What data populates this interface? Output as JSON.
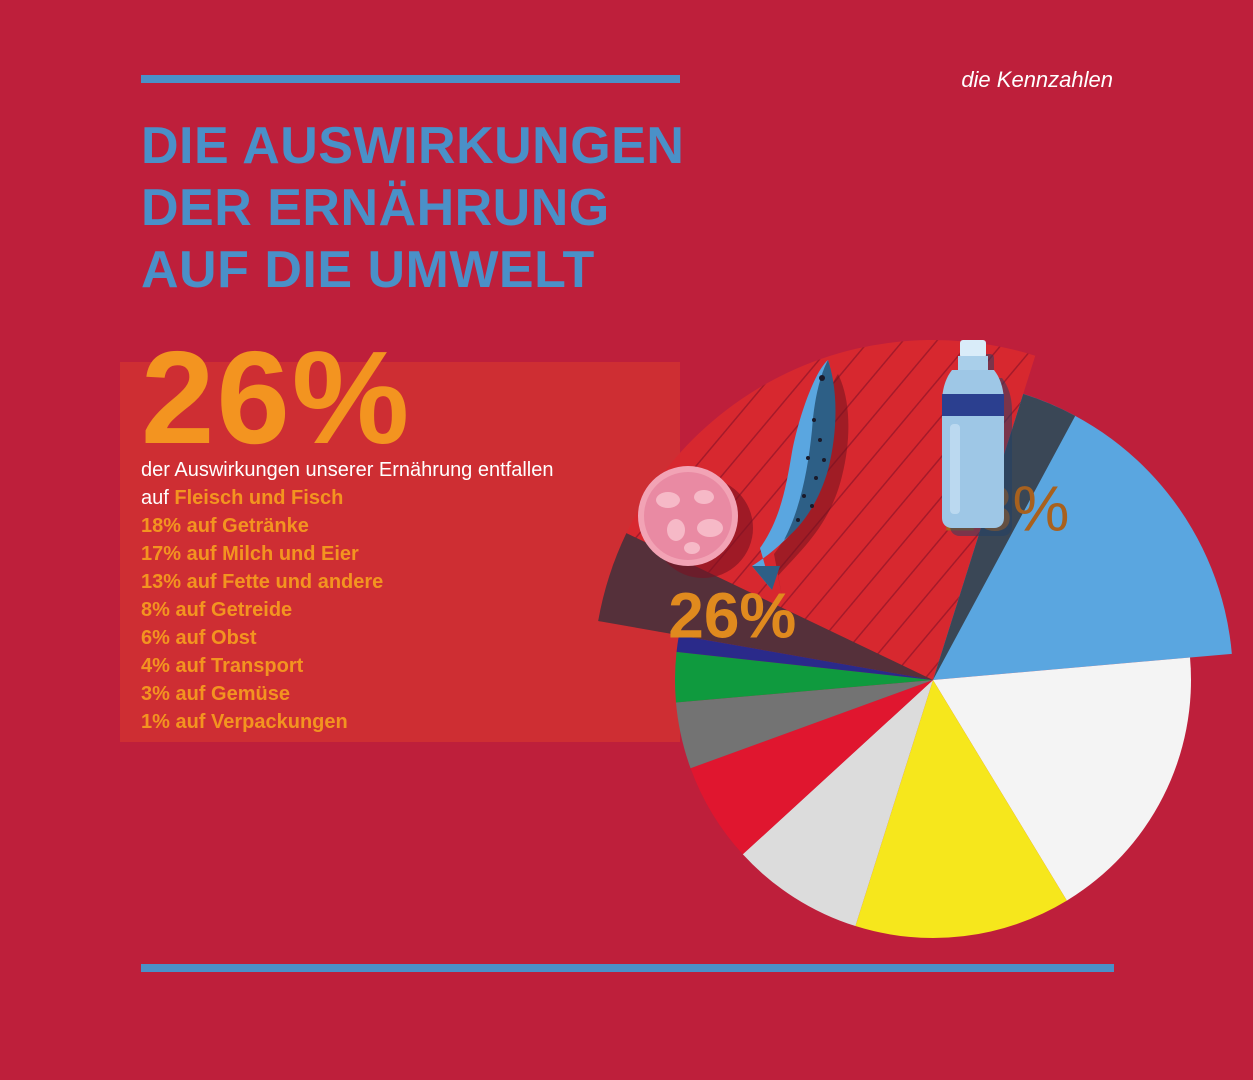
{
  "kicker": "die Kennzahlen",
  "title_lines": [
    "DIE AUSWIRKUNGEN",
    "DER ERNÄHRUNG",
    "AUF DIE UMWELT"
  ],
  "highlight": {
    "big_value": "26%",
    "lead_text": "der Auswirkungen unserer Ernährung entfallen",
    "lead_prefix": "auf",
    "lead_accent": "Fleisch und Fisch"
  },
  "breakdown": [
    "18% auf Getränke",
    "17% auf Milch und Eier",
    "13% auf Fette und andere",
    "8% auf Getreide",
    "6% auf Obst",
    "4% auf Transport",
    "3% auf Gemüse",
    "1% auf Verpackungen"
  ],
  "colors": {
    "background": "#be1f3b",
    "accent_blue": "#4a90c8",
    "accent_orange": "#f39420",
    "highlight_box": "#ce2e33"
  },
  "icons": [
    "meat-slice-icon",
    "salmon-icon",
    "water-bottle-icon"
  ],
  "chart_data": {
    "type": "pie",
    "slices": [
      {
        "name": "Fleisch und Fisch",
        "value": 26,
        "color": "#d7282f",
        "label": "26%"
      },
      {
        "name": "Getränke",
        "value": 18,
        "color": "#5aa6e0",
        "label": "18%"
      },
      {
        "name": "Milch und Eier",
        "value": 17,
        "color": "#f4f4f4"
      },
      {
        "name": "Fette und andere",
        "value": 13,
        "color": "#f6e71c"
      },
      {
        "name": "Getreide",
        "value": 8,
        "color": "#dcdcdc"
      },
      {
        "name": "Obst",
        "value": 6,
        "color": "#e0162f"
      },
      {
        "name": "Transport",
        "value": 4,
        "color": "#737373"
      },
      {
        "name": "Gemüse",
        "value": 3,
        "color": "#0f9a3e"
      },
      {
        "name": "Verpackungen",
        "value": 1,
        "color": "#2a2a8a"
      }
    ]
  }
}
